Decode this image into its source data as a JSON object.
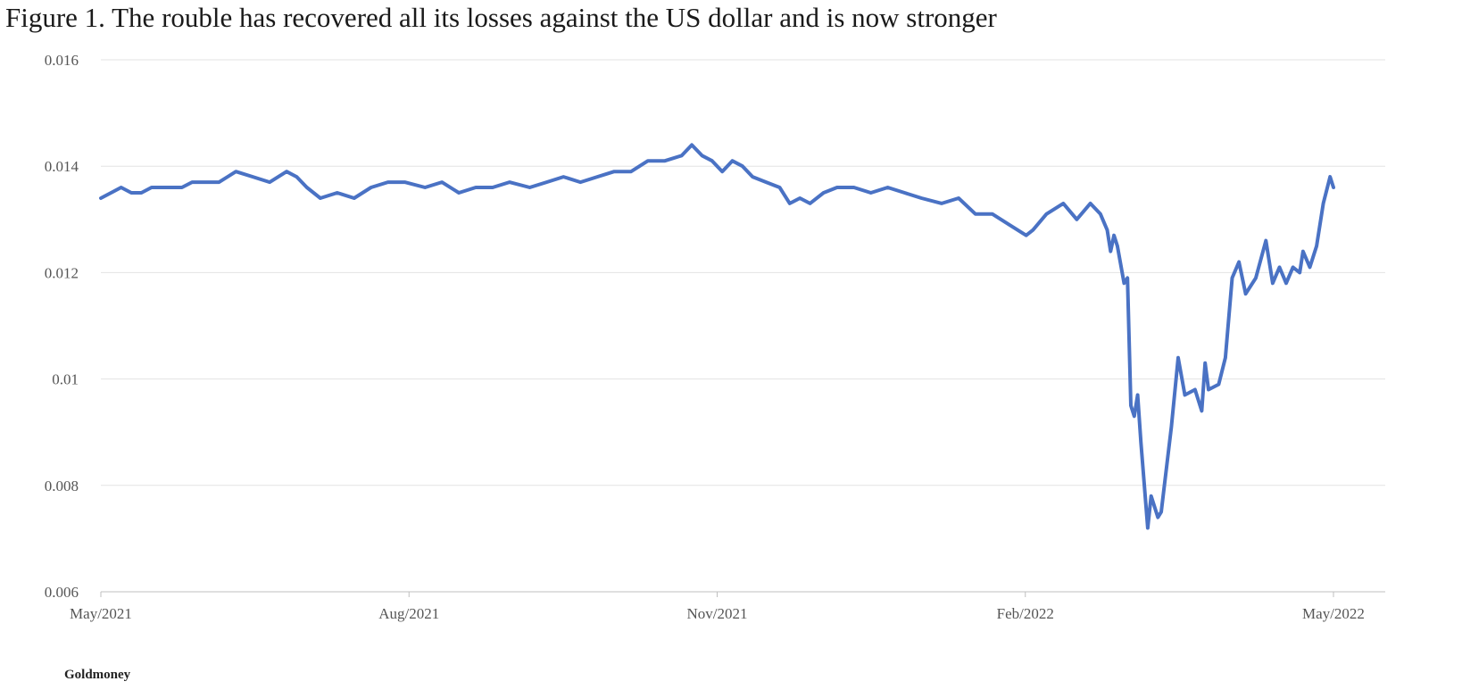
{
  "figure": {
    "title": "Figure 1. The rouble has recovered all its losses against the US dollar and is now stronger",
    "source": "Goldmoney"
  },
  "chart_data": {
    "type": "line",
    "title": "Figure 1. The rouble has recovered all its losses against the US dollar and is now stronger",
    "xlabel": "",
    "ylabel": "",
    "ylim": [
      0.006,
      0.016
    ],
    "yticks": [
      "0.006",
      "0.008",
      "0.01",
      "0.012",
      "0.014",
      "0.016"
    ],
    "xticks": [
      "May/2021",
      "Aug/2021",
      "Nov/2021",
      "Feb/2022",
      "May/2022"
    ],
    "xlim": [
      "2021-05-01",
      "2022-05-01"
    ],
    "grid": true,
    "legend": "none",
    "color": "#4a72c4",
    "series": [
      {
        "x": [
          "2021-05-01",
          "2021-05-04",
          "2021-05-07",
          "2021-05-10",
          "2021-05-13",
          "2021-05-16",
          "2021-05-19",
          "2021-05-22",
          "2021-05-25",
          "2021-05-28",
          "2021-06-01",
          "2021-06-05",
          "2021-06-10",
          "2021-06-15",
          "2021-06-20",
          "2021-06-25",
          "2021-06-28",
          "2021-07-01",
          "2021-07-05",
          "2021-07-10",
          "2021-07-15",
          "2021-07-20",
          "2021-07-25",
          "2021-07-30",
          "2021-08-05",
          "2021-08-10",
          "2021-08-15",
          "2021-08-20",
          "2021-08-25",
          "2021-08-30",
          "2021-09-05",
          "2021-09-10",
          "2021-09-15",
          "2021-09-20",
          "2021-09-25",
          "2021-09-30",
          "2021-10-05",
          "2021-10-10",
          "2021-10-15",
          "2021-10-20",
          "2021-10-23",
          "2021-10-26",
          "2021-10-29",
          "2021-11-01",
          "2021-11-04",
          "2021-11-07",
          "2021-11-10",
          "2021-11-14",
          "2021-11-18",
          "2021-11-21",
          "2021-11-24",
          "2021-11-27",
          "2021-12-01",
          "2021-12-05",
          "2021-12-10",
          "2021-12-15",
          "2021-12-20",
          "2021-12-25",
          "2021-12-30",
          "2022-01-05",
          "2022-01-10",
          "2022-01-15",
          "2022-01-20",
          "2022-01-25",
          "2022-01-30",
          "2022-02-01",
          "2022-02-05",
          "2022-02-10",
          "2022-02-14",
          "2022-02-18",
          "2022-02-21",
          "2022-02-23",
          "2022-02-24",
          "2022-02-25",
          "2022-02-26",
          "2022-02-28",
          "2022-03-01",
          "2022-03-02",
          "2022-03-03",
          "2022-03-04",
          "2022-03-05",
          "2022-03-07",
          "2022-03-08",
          "2022-03-09",
          "2022-03-10",
          "2022-03-11",
          "2022-03-14",
          "2022-03-16",
          "2022-03-18",
          "2022-03-21",
          "2022-03-23",
          "2022-03-24",
          "2022-03-25",
          "2022-03-28",
          "2022-03-30",
          "2022-04-01",
          "2022-04-03",
          "2022-04-05",
          "2022-04-08",
          "2022-04-11",
          "2022-04-13",
          "2022-04-15",
          "2022-04-17",
          "2022-04-19",
          "2022-04-21",
          "2022-04-22",
          "2022-04-24",
          "2022-04-26",
          "2022-04-28",
          "2022-04-30",
          "2022-05-01"
        ],
        "y": [
          0.0134,
          0.0135,
          0.0136,
          0.0135,
          0.0135,
          0.0136,
          0.0136,
          0.0136,
          0.0136,
          0.0137,
          0.0137,
          0.0137,
          0.0139,
          0.0138,
          0.0137,
          0.0139,
          0.0138,
          0.0136,
          0.0134,
          0.0135,
          0.0134,
          0.0136,
          0.0137,
          0.0137,
          0.0136,
          0.0137,
          0.0135,
          0.0136,
          0.0136,
          0.0137,
          0.0136,
          0.0137,
          0.0138,
          0.0137,
          0.0138,
          0.0139,
          0.0139,
          0.0141,
          0.0141,
          0.0142,
          0.0144,
          0.0142,
          0.0141,
          0.0139,
          0.0141,
          0.014,
          0.0138,
          0.0137,
          0.0136,
          0.0133,
          0.0134,
          0.0133,
          0.0135,
          0.0136,
          0.0136,
          0.0135,
          0.0136,
          0.0135,
          0.0134,
          0.0133,
          0.0134,
          0.0131,
          0.0131,
          0.0129,
          0.0127,
          0.0128,
          0.0131,
          0.0133,
          0.013,
          0.0133,
          0.0131,
          0.0128,
          0.0124,
          0.0127,
          0.0125,
          0.0118,
          0.0119,
          0.0095,
          0.0093,
          0.0097,
          0.0088,
          0.0072,
          0.0078,
          0.0076,
          0.0074,
          0.0075,
          0.0091,
          0.0104,
          0.0097,
          0.0098,
          0.0094,
          0.0103,
          0.0098,
          0.0099,
          0.0104,
          0.0119,
          0.0122,
          0.0116,
          0.0119,
          0.0126,
          0.0118,
          0.0121,
          0.0118,
          0.0121,
          0.012,
          0.0124,
          0.0121,
          0.0125,
          0.0133,
          0.0138,
          0.0136
        ]
      }
    ]
  }
}
